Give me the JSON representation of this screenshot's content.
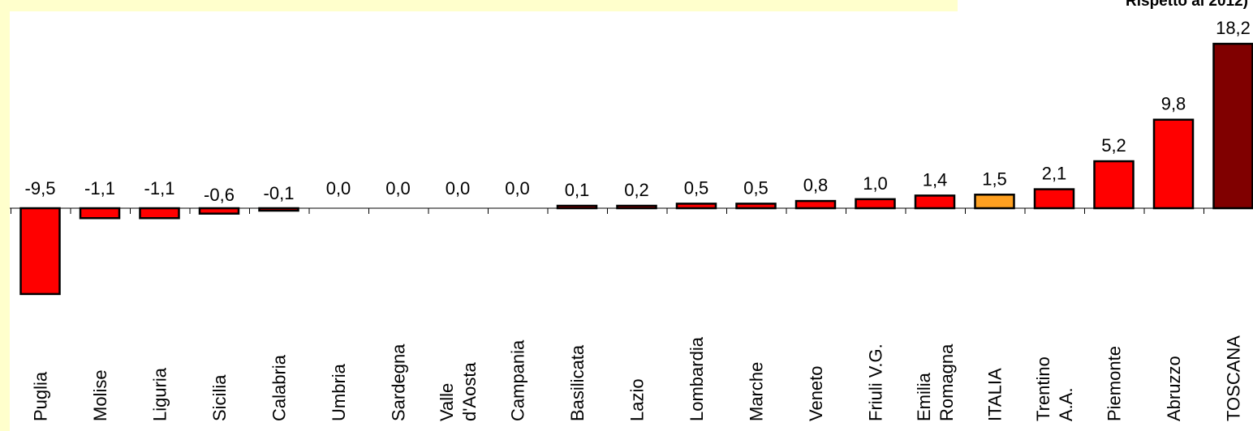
{
  "chart_data": {
    "type": "bar",
    "title": "Rispetto al 2012)",
    "categories": [
      [
        "Puglia"
      ],
      [
        "Molise"
      ],
      [
        "Liguria"
      ],
      [
        "Sicilia"
      ],
      [
        "Calabria"
      ],
      [
        "Umbria"
      ],
      [
        "Sardegna"
      ],
      [
        "Valle",
        "d'Aosta"
      ],
      [
        "Campania"
      ],
      [
        "Basilicata"
      ],
      [
        "Lazio"
      ],
      [
        "Lombardia"
      ],
      [
        "Marche"
      ],
      [
        "Veneto"
      ],
      [
        "Friuli V.G."
      ],
      [
        "Emilia",
        "Romagna"
      ],
      [
        "ITALIA"
      ],
      [
        "Trentino",
        "A.A."
      ],
      [
        "Piemonte"
      ],
      [
        "Abruzzo"
      ],
      [
        "TOSCANA"
      ]
    ],
    "values": [
      -9.5,
      -1.1,
      -1.1,
      -0.6,
      -0.1,
      0.0,
      0.0,
      0.0,
      0.0,
      0.1,
      0.2,
      0.5,
      0.5,
      0.8,
      1.0,
      1.4,
      1.5,
      2.1,
      5.2,
      9.8,
      18.2
    ],
    "value_labels": [
      "-9,5",
      "-1,1",
      "-1,1",
      "-0,6",
      "-0,1",
      "0,0",
      "0,0",
      "0,0",
      "0,0",
      "0,1",
      "0,2",
      "0,5",
      "0,5",
      "0,8",
      "1,0",
      "1,4",
      "1,5",
      "2,1",
      "5,2",
      "9,8",
      "18,2"
    ],
    "bar_colors": [
      "#ff0000",
      "#ff0000",
      "#ff0000",
      "#ff0000",
      "#ff0000",
      "#ff0000",
      "#ff0000",
      "#ff0000",
      "#ff0000",
      "#ff0000",
      "#ff0000",
      "#ff0000",
      "#ff0000",
      "#ff0000",
      "#ff0000",
      "#ff0000",
      "#ffa020",
      "#ff0000",
      "#ff0000",
      "#ff0000",
      "#800000"
    ],
    "xlabel": "",
    "ylabel": "",
    "grid": false
  },
  "colors": {
    "background_accent": "#ffffcc",
    "bar_default": "#ff0000",
    "bar_italia": "#ffa020",
    "bar_toscana": "#800000"
  }
}
